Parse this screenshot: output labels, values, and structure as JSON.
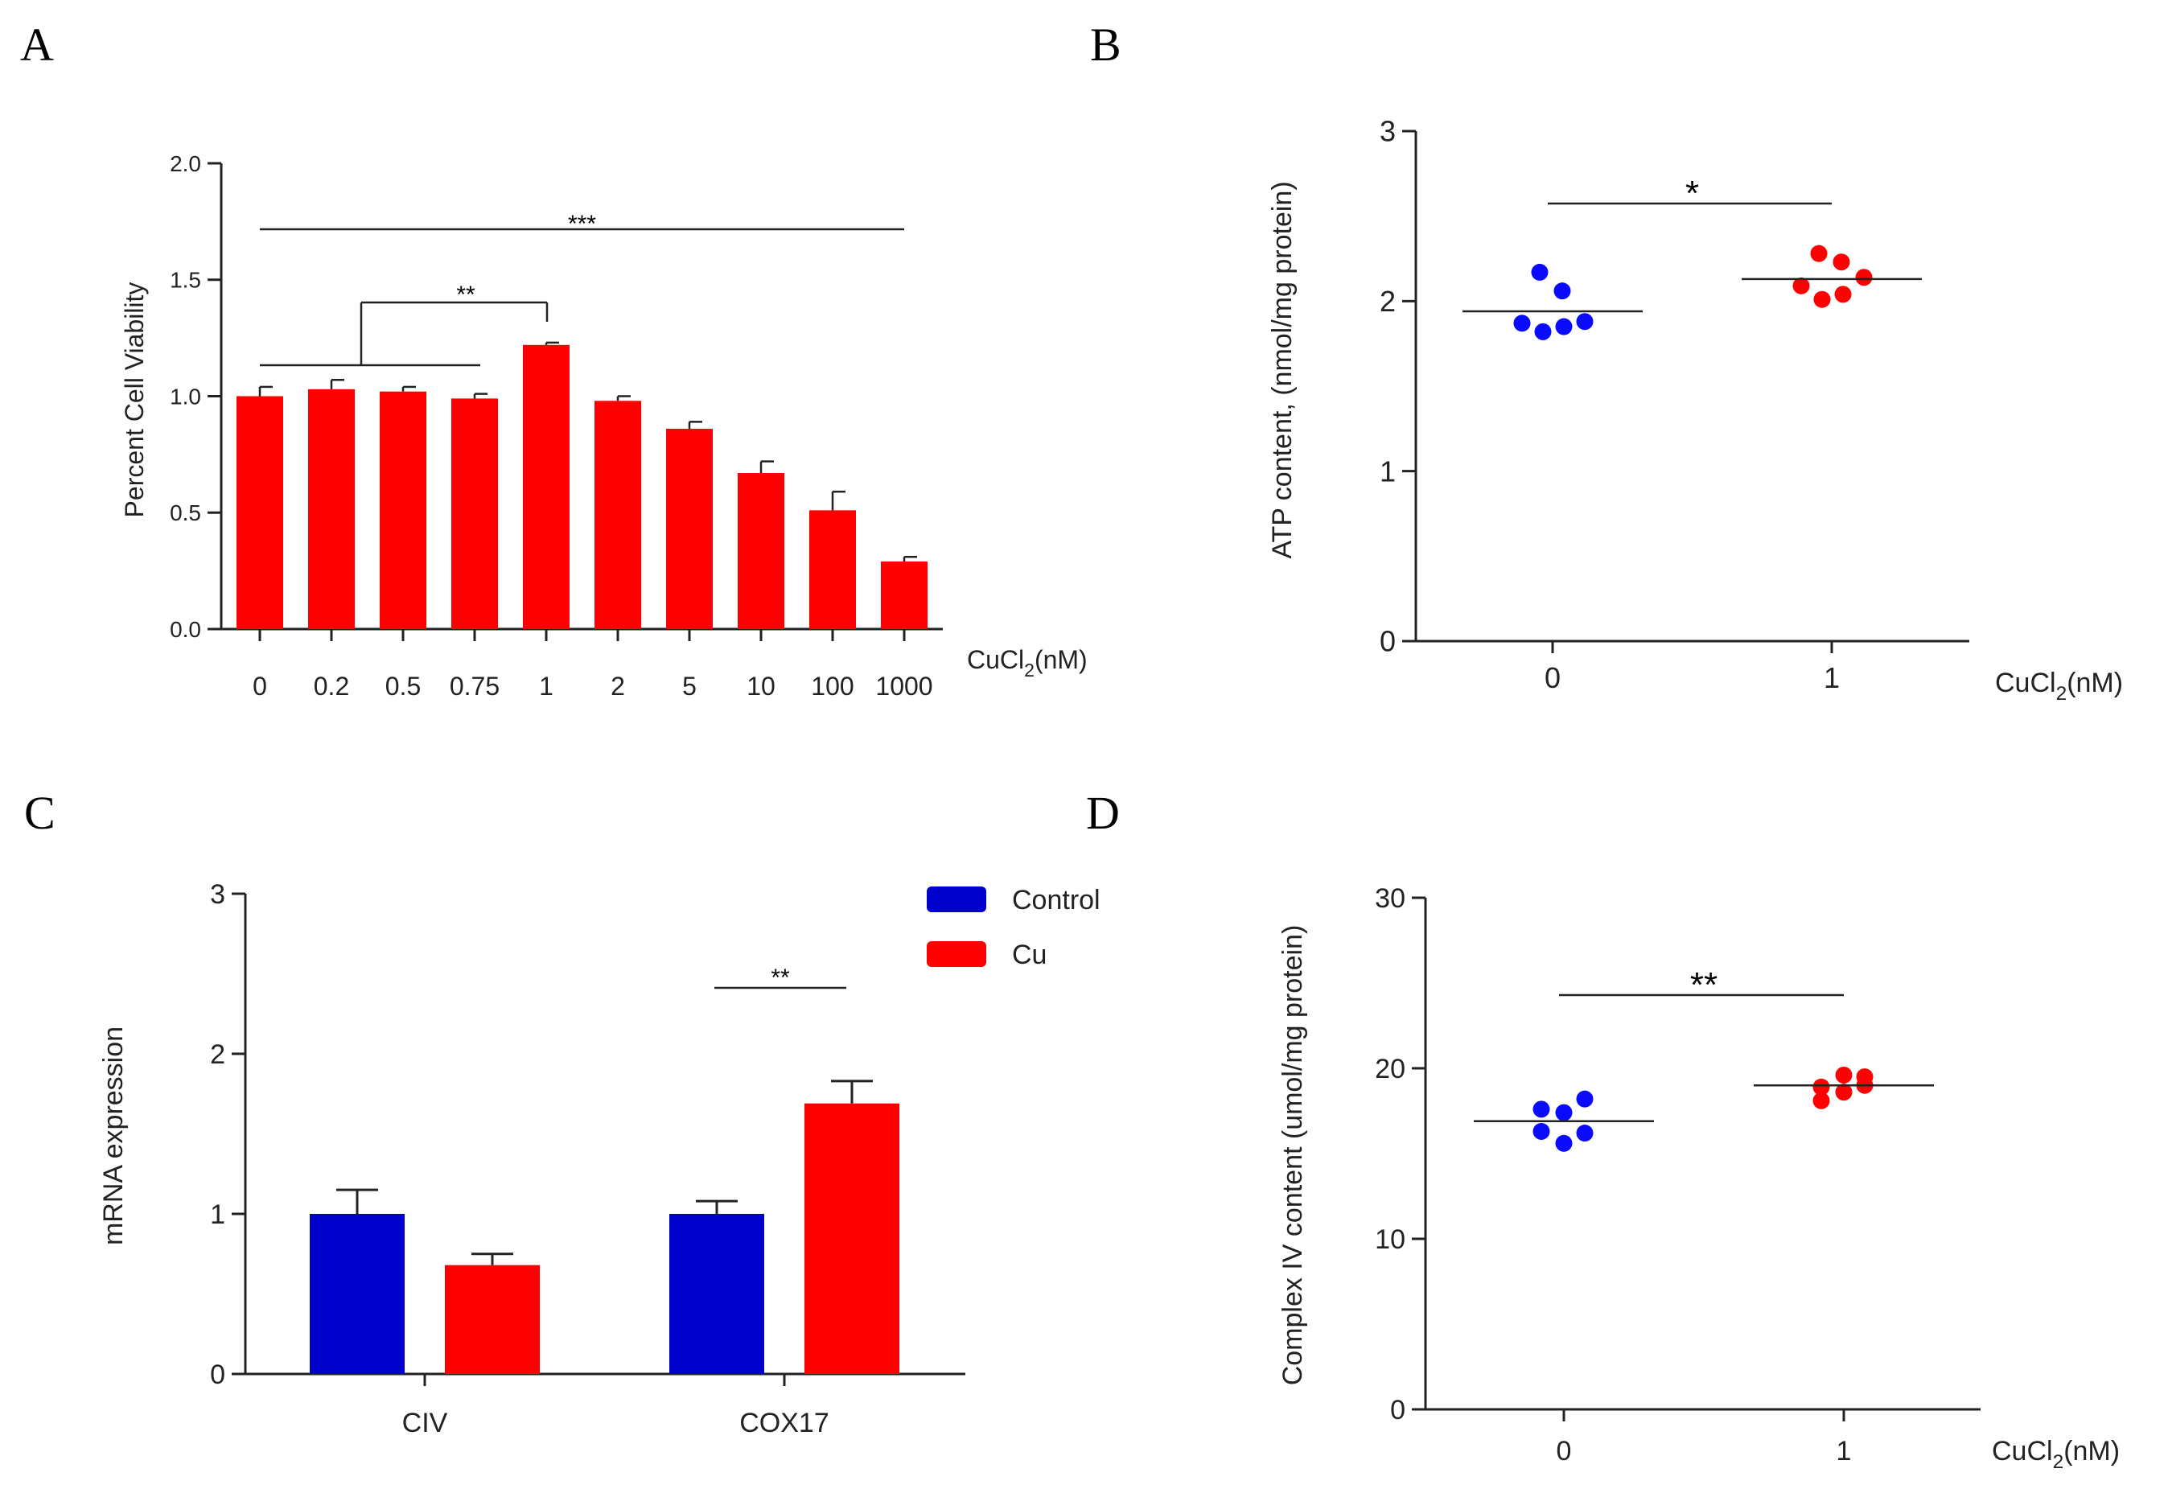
{
  "panel_labels": {
    "a": "A",
    "b": "B",
    "c": "C",
    "d": "D"
  },
  "colors": {
    "red": "#ff0000",
    "blue": "#0000cc",
    "dot_blue": "#0a0aff",
    "axis": "#222222"
  },
  "chart_data": [
    {
      "panel": "A",
      "type": "bar",
      "title": "",
      "xlabel_main": "CuCl",
      "xlabel_sub": "2",
      "xlabel_unit": "(nM)",
      "ylabel": "Percent Cell Viability",
      "ylim": [
        0,
        2.0
      ],
      "yticks": [
        "0.0",
        "0.5",
        "1.0",
        "1.5",
        "2.0"
      ],
      "categories": [
        "0",
        "0.2",
        "0.5",
        "0.75",
        "1",
        "2",
        "5",
        "10",
        "100",
        "1000"
      ],
      "values": [
        1.0,
        1.03,
        1.02,
        0.99,
        1.22,
        0.98,
        0.86,
        0.67,
        0.51,
        0.29
      ],
      "errors": [
        0.04,
        0.04,
        0.02,
        0.02,
        0.01,
        0.02,
        0.03,
        0.05,
        0.08,
        0.02
      ],
      "annotations": [
        {
          "label": "***",
          "from": "0",
          "to": "1000"
        },
        {
          "label": "**",
          "from": "0-0.75",
          "to": "1"
        }
      ]
    },
    {
      "panel": "B",
      "type": "scatter",
      "xlabel_main": "CuCl",
      "xlabel_sub": "2",
      "xlabel_unit": "(nM)",
      "ylabel": "ATP content,  (nmol/mg protein)",
      "ylim": [
        0,
        3
      ],
      "yticks": [
        "0",
        "1",
        "2",
        "3"
      ],
      "categories": [
        "0",
        "1"
      ],
      "groups": [
        {
          "name": "0",
          "points": [
            1.87,
            1.82,
            1.85,
            1.88,
            2.17,
            2.06
          ],
          "mean": 1.94
        },
        {
          "name": "1",
          "points": [
            2.09,
            2.01,
            2.04,
            2.14,
            2.28,
            2.23
          ],
          "mean": 2.13
        }
      ],
      "annotations": [
        {
          "label": "*",
          "from": "0",
          "to": "1"
        }
      ]
    },
    {
      "panel": "C",
      "type": "bar",
      "ylabel": "mRNA expression",
      "ylim": [
        0,
        3
      ],
      "yticks": [
        "0",
        "1",
        "2",
        "3"
      ],
      "categories": [
        "CIV",
        "COX17"
      ],
      "series": [
        {
          "name": "Control",
          "values": [
            1.0,
            1.0
          ],
          "errors": [
            0.15,
            0.08
          ]
        },
        {
          "name": "Cu",
          "values": [
            0.68,
            1.69
          ],
          "errors": [
            0.07,
            0.14
          ]
        }
      ],
      "legend_position": "top-right",
      "annotations": [
        {
          "label": "**",
          "category": "COX17"
        }
      ]
    },
    {
      "panel": "D",
      "type": "scatter",
      "xlabel_main": "CuCl",
      "xlabel_sub": "2",
      "xlabel_unit": "(nM)",
      "ylabel": "Complex IV content  (umol/mg protein)",
      "ylim": [
        0,
        30
      ],
      "yticks": [
        "0",
        "10",
        "20",
        "30"
      ],
      "categories": [
        "0",
        "1"
      ],
      "groups": [
        {
          "name": "0",
          "points": [
            17.6,
            16.3,
            15.6,
            16.2,
            17.4,
            18.2
          ],
          "mean": 16.9
        },
        {
          "name": "1",
          "points": [
            18.9,
            18.1,
            18.6,
            19.0,
            19.6,
            19.5
          ],
          "mean": 19.0
        }
      ],
      "annotations": [
        {
          "label": "**",
          "from": "0",
          "to": "1"
        }
      ]
    }
  ]
}
